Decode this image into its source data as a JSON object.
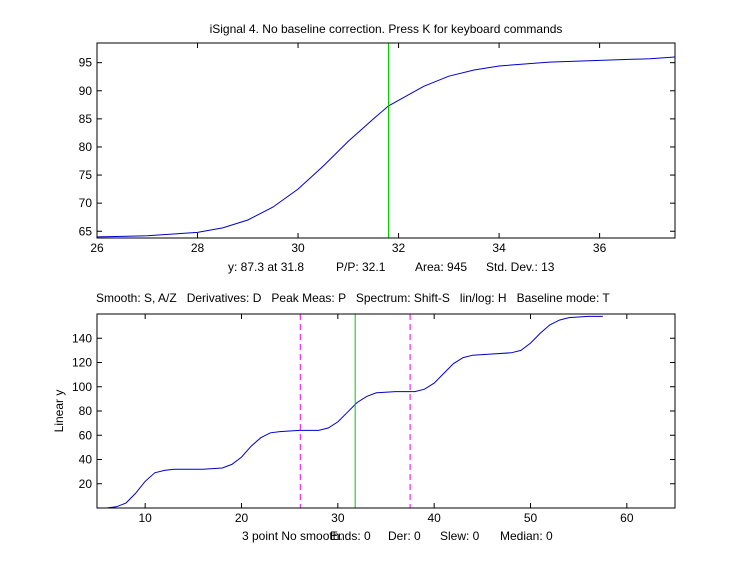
{
  "window": {
    "title": "iSignal 4. No baseline correction.  Press K for keyboard commands"
  },
  "top_status": {
    "y_readout": "y: 87.3 at 31.8",
    "pp": "P/P: 32.1",
    "area": "Area: 945",
    "std_dev": "Std. Dev.: 13"
  },
  "keyboard_help": "Smooth: S, A/Z   Derivatives: D   Peak Meas: P   Spectrum: Shift-S   lin/log: H   Baseline mode: T",
  "bottom_status": {
    "smooth": "3 point No smooth.",
    "ends": "Ends: 0",
    "der": "Der: 0",
    "slew": "Slew: 0",
    "median": "Median: 0"
  },
  "colors": {
    "signal": "#0000cc",
    "cursor": "#00cc00",
    "window_edges": "#ee00ee"
  },
  "chart_data": [
    {
      "type": "line",
      "name": "zoomed-segment",
      "title": "iSignal 4. No baseline correction.  Press K for keyboard commands",
      "xlabel": "",
      "ylabel": "",
      "xlim": [
        26,
        37.5
      ],
      "ylim": [
        63.8,
        98.5
      ],
      "xticks": [
        26,
        28,
        30,
        32,
        34,
        36
      ],
      "yticks": [
        65,
        70,
        75,
        80,
        85,
        90,
        95
      ],
      "series": [
        {
          "name": "signal",
          "x": [
            26,
            27,
            28,
            28.5,
            29,
            29.5,
            30,
            30.5,
            31,
            31.5,
            31.8,
            32,
            32.5,
            33,
            33.5,
            34,
            35,
            36,
            37,
            37.5
          ],
          "y": [
            64.0,
            64.2,
            64.8,
            65.6,
            67.0,
            69.3,
            72.5,
            76.6,
            81.0,
            85.0,
            87.3,
            88.3,
            90.8,
            92.6,
            93.7,
            94.4,
            95.1,
            95.4,
            95.7,
            96.0
          ]
        }
      ],
      "cursor_x": 31.8
    },
    {
      "type": "line",
      "name": "full-signal",
      "title": "",
      "xlabel": "",
      "ylabel": "Linear y",
      "xlim": [
        5,
        65
      ],
      "ylim": [
        0,
        160
      ],
      "xticks": [
        10,
        20,
        30,
        40,
        50,
        60
      ],
      "yticks": [
        20,
        40,
        60,
        80,
        100,
        120,
        140
      ],
      "series": [
        {
          "name": "signal",
          "x": [
            5,
            6,
            7,
            8,
            9,
            10,
            11,
            12,
            13,
            14,
            16,
            18,
            19,
            20,
            21,
            22,
            23,
            24,
            26,
            28,
            29,
            30,
            31,
            32,
            33,
            34,
            36,
            38,
            39,
            40,
            41,
            42,
            43,
            44,
            46,
            48,
            49,
            50,
            51,
            52,
            53,
            54,
            56,
            57.5
          ],
          "y": [
            0,
            0,
            1,
            4,
            12,
            22,
            29,
            31,
            32,
            32,
            32,
            33,
            36,
            42,
            51,
            58,
            62,
            63,
            64,
            64,
            66,
            71,
            79,
            87,
            92,
            95,
            96,
            96,
            98,
            103,
            111,
            119,
            124,
            126,
            127,
            128,
            130,
            136,
            144,
            151,
            155,
            157,
            158,
            158
          ]
        }
      ],
      "cursor_x": 31.8,
      "window_edges_x": [
        26.1,
        37.5
      ]
    }
  ]
}
